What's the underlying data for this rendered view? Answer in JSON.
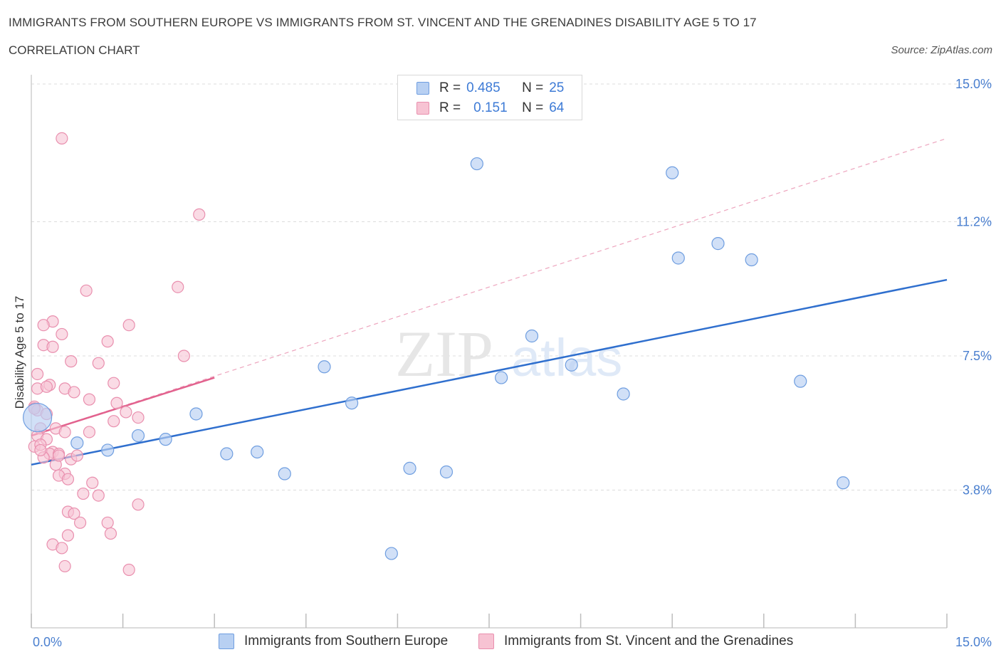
{
  "header": {
    "title": "IMMIGRANTS FROM SOUTHERN EUROPE VS IMMIGRANTS FROM ST. VINCENT AND THE GRENADINES DISABILITY AGE 5 TO 17",
    "subtitle": "CORRELATION CHART",
    "source": "Source: ZipAtlas.com"
  },
  "legend": {
    "r_label": "R =",
    "n_label": "N =",
    "series1": {
      "r": "0.485",
      "n": "25"
    },
    "series2": {
      "r": "0.151",
      "n": "64"
    }
  },
  "colors": {
    "blue_fill": "#b8d0f2",
    "blue_stroke": "#6f9ee0",
    "blue_line": "#2f6fce",
    "pink_fill": "#f7c3d3",
    "pink_stroke": "#e98fae",
    "pink_line": "#e2628e",
    "grid": "#dcdcdc",
    "axis_text": "#4a7fcf"
  },
  "watermark": {
    "zip": "ZIP",
    "atlas": "atlas"
  },
  "chart_data": {
    "type": "scatter",
    "title": "IMMIGRANTS FROM SOUTHERN EUROPE VS IMMIGRANTS FROM ST. VINCENT AND THE GRENADINES DISABILITY AGE 5 TO 17",
    "xlabel": "",
    "ylabel": "Disability Age 5 to 17",
    "xlim": [
      0,
      15
    ],
    "ylim": [
      0,
      15
    ],
    "x_tick_labels": [
      "0.0%",
      "15.0%"
    ],
    "y_ticks": [
      3.8,
      7.5,
      11.2,
      15.0
    ],
    "y_tick_labels": [
      "3.8%",
      "7.5%",
      "11.2%",
      "15.0%"
    ],
    "grid": true,
    "series": [
      {
        "name": "Immigrants from Southern Europe",
        "color": "blue",
        "r": 0.485,
        "n": 25,
        "trend": {
          "x": [
            0,
            15
          ],
          "y": [
            4.5,
            9.6
          ]
        },
        "points": [
          [
            0.1,
            5.8
          ],
          [
            0.75,
            5.1
          ],
          [
            1.25,
            4.9
          ],
          [
            1.75,
            5.3
          ],
          [
            2.2,
            5.2
          ],
          [
            2.7,
            5.9
          ],
          [
            3.2,
            4.8
          ],
          [
            3.7,
            4.85
          ],
          [
            4.15,
            4.25
          ],
          [
            4.8,
            7.2
          ],
          [
            5.25,
            6.2
          ],
          [
            5.9,
            2.05
          ],
          [
            6.2,
            4.4
          ],
          [
            6.8,
            4.3
          ],
          [
            7.3,
            12.8
          ],
          [
            7.7,
            6.9
          ],
          [
            8.2,
            8.05
          ],
          [
            8.85,
            7.25
          ],
          [
            9.7,
            6.45
          ],
          [
            10.5,
            12.55
          ],
          [
            10.6,
            10.2
          ],
          [
            11.25,
            10.6
          ],
          [
            11.8,
            10.15
          ],
          [
            12.6,
            6.8
          ],
          [
            13.3,
            4.0
          ]
        ]
      },
      {
        "name": "Immigrants from St. Vincent and the Grenadines",
        "color": "pink",
        "r": 0.151,
        "n": 64,
        "trend": {
          "x": [
            0,
            3.0
          ],
          "y": [
            5.3,
            6.9
          ]
        },
        "trend_extended": {
          "x": [
            0,
            15
          ],
          "y": [
            5.3,
            13.5
          ]
        },
        "points": [
          [
            0.5,
            13.5
          ],
          [
            2.75,
            11.4
          ],
          [
            0.9,
            9.3
          ],
          [
            2.4,
            9.4
          ],
          [
            0.35,
            8.45
          ],
          [
            0.2,
            8.35
          ],
          [
            0.5,
            8.1
          ],
          [
            1.25,
            7.9
          ],
          [
            1.6,
            8.35
          ],
          [
            0.2,
            7.8
          ],
          [
            0.35,
            7.75
          ],
          [
            0.65,
            7.35
          ],
          [
            1.1,
            7.3
          ],
          [
            2.5,
            7.5
          ],
          [
            0.1,
            7.0
          ],
          [
            0.3,
            6.7
          ],
          [
            0.55,
            6.6
          ],
          [
            0.1,
            6.6
          ],
          [
            0.7,
            6.5
          ],
          [
            0.95,
            6.3
          ],
          [
            1.35,
            6.75
          ],
          [
            1.4,
            6.2
          ],
          [
            1.55,
            5.95
          ],
          [
            1.75,
            5.8
          ],
          [
            0.05,
            6.1
          ],
          [
            0.1,
            6.0
          ],
          [
            0.25,
            5.9
          ],
          [
            0.4,
            5.5
          ],
          [
            0.15,
            5.5
          ],
          [
            0.55,
            5.4
          ],
          [
            0.95,
            5.4
          ],
          [
            1.35,
            5.7
          ],
          [
            0.1,
            5.3
          ],
          [
            0.25,
            5.2
          ],
          [
            0.05,
            5.0
          ],
          [
            0.15,
            5.05
          ],
          [
            0.35,
            4.85
          ],
          [
            0.3,
            4.8
          ],
          [
            0.45,
            4.8
          ],
          [
            0.2,
            4.7
          ],
          [
            0.65,
            4.65
          ],
          [
            0.4,
            4.5
          ],
          [
            0.55,
            4.25
          ],
          [
            0.45,
            4.2
          ],
          [
            0.6,
            4.1
          ],
          [
            1.0,
            4.0
          ],
          [
            0.85,
            3.7
          ],
          [
            1.1,
            3.65
          ],
          [
            1.75,
            3.4
          ],
          [
            0.6,
            3.2
          ],
          [
            0.7,
            3.15
          ],
          [
            0.8,
            2.9
          ],
          [
            0.6,
            2.55
          ],
          [
            1.25,
            2.9
          ],
          [
            1.3,
            2.6
          ],
          [
            0.35,
            2.3
          ],
          [
            0.5,
            2.2
          ],
          [
            0.55,
            1.7
          ],
          [
            1.6,
            1.6
          ],
          [
            0.15,
            4.9
          ],
          [
            0.25,
            6.65
          ],
          [
            0.75,
            4.75
          ],
          [
            0.05,
            6.05
          ],
          [
            0.45,
            4.75
          ]
        ]
      }
    ]
  },
  "bottom_legend": {
    "series1_label": "Immigrants from Southern Europe",
    "series2_label": "Immigrants from St. Vincent and the Grenadines"
  }
}
